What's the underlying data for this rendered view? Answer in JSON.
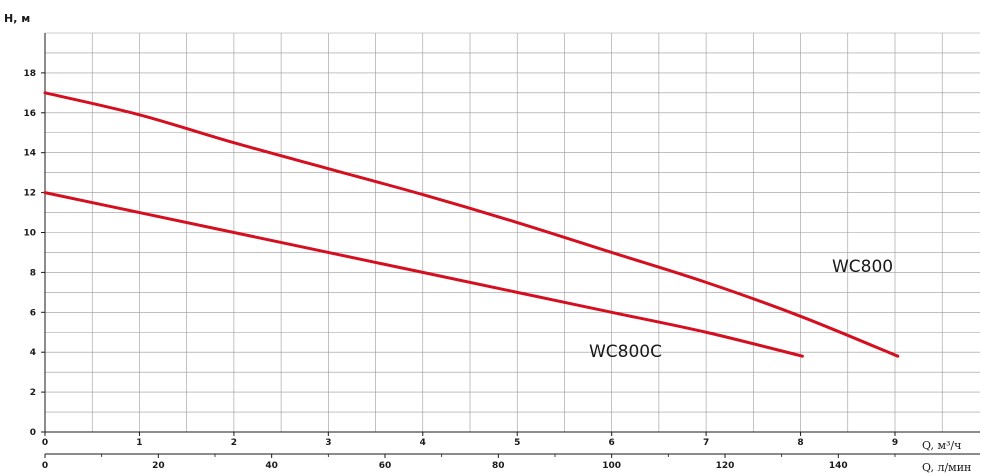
{
  "chart_data": {
    "type": "line",
    "ylabel": "H, м",
    "xlabel_top": "Q, м³/ч",
    "xlabel_bottom": "Q, л/мин",
    "ylim": [
      0,
      20
    ],
    "yticks": [
      "0",
      "2",
      "4",
      "6",
      "8",
      "10",
      "12",
      "14",
      "16",
      "18"
    ],
    "xlim": [
      0,
      9.9
    ],
    "xticks_top": [
      "0",
      "1",
      "2",
      "3",
      "4",
      "5",
      "6",
      "7",
      "8",
      "9"
    ],
    "xticks_bottom": [
      "0",
      "20",
      "40",
      "60",
      "80",
      "100",
      "120",
      "140"
    ],
    "bottom_axis_per_unit": 16.667,
    "grid": true,
    "series": [
      {
        "name": "WC800",
        "color": "#d40f1f",
        "x": [
          0,
          1,
          2,
          3,
          4,
          5,
          6,
          7,
          8,
          9.03
        ],
        "y": [
          17.0,
          15.9,
          14.5,
          13.2,
          11.9,
          10.5,
          9.0,
          7.5,
          5.8,
          3.8
        ]
      },
      {
        "name": "WC800C",
        "color": "#d40f1f",
        "x": [
          0,
          1,
          2,
          3,
          4,
          5,
          6,
          7,
          8.02
        ],
        "y": [
          12.0,
          11.0,
          10.0,
          9.0,
          8.0,
          7.0,
          6.0,
          5.0,
          3.8
        ]
      }
    ]
  }
}
